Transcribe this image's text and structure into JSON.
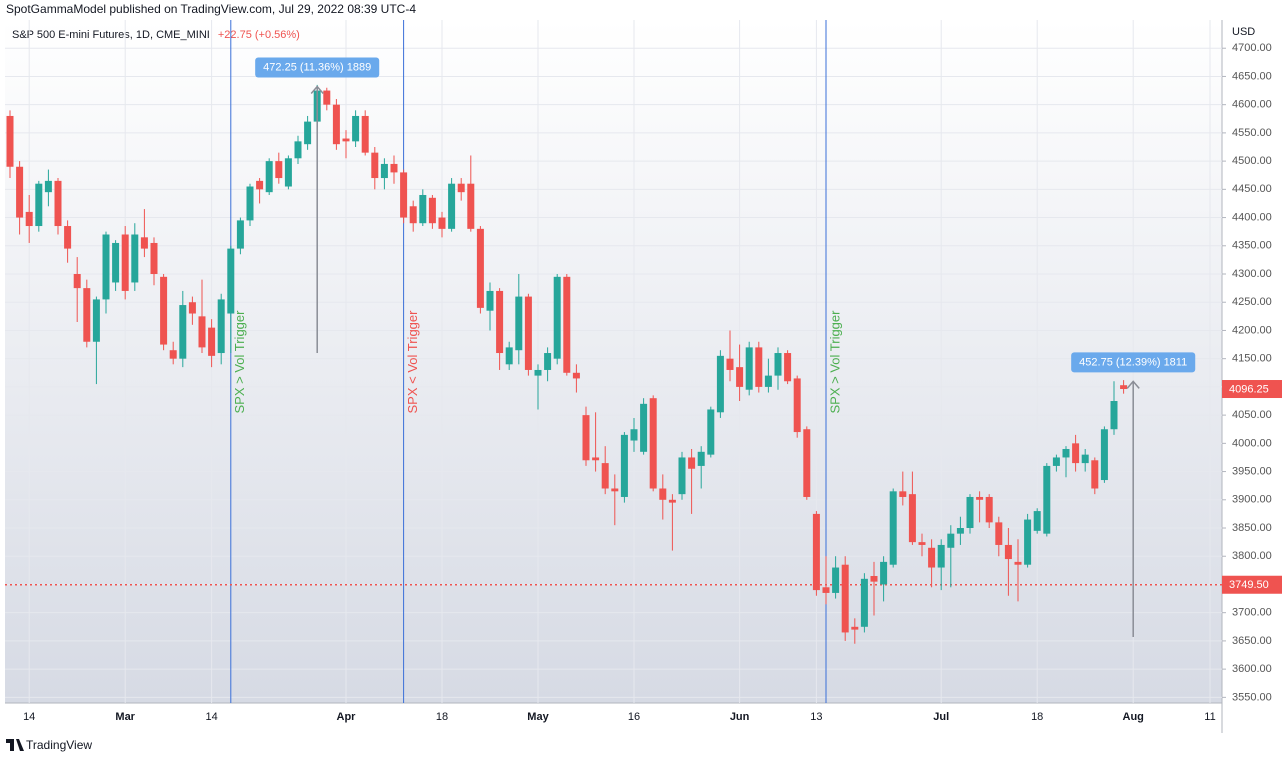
{
  "header": {
    "publisher": "SpotGammaModel published on TradingView.com, Jul 29, 2022 08:39 UTC-4"
  },
  "footer": {
    "brand": "TradingView"
  },
  "chart_data": {
    "type": "candlestick",
    "title": "S&P 500 E-mini Futures, 1D, CME_MINI",
    "change": "+22.75 (+0.56%)",
    "change_color": "#ef5350",
    "currency": "USD",
    "up_color": "#26a69a",
    "down_color": "#ef5350",
    "grid": true,
    "ylim": [
      3540,
      4750
    ],
    "yticks": [
      {
        "value": 3550,
        "label": "3550.00"
      },
      {
        "value": 3600,
        "label": "3600.00"
      },
      {
        "value": 3650,
        "label": "3650.00"
      },
      {
        "value": 3700,
        "label": "3700.00"
      },
      {
        "value": 3750,
        "label": "3750.00"
      },
      {
        "value": 3800,
        "label": "3800.00"
      },
      {
        "value": 3850,
        "label": "3850.00"
      },
      {
        "value": 3900,
        "label": "3900.00"
      },
      {
        "value": 3950,
        "label": "3950.00"
      },
      {
        "value": 4000,
        "label": "4000.00"
      },
      {
        "value": 4050,
        "label": "4050.00"
      },
      {
        "value": 4100,
        "label": "4100.00"
      },
      {
        "value": 4150,
        "label": "4150.00"
      },
      {
        "value": 4200,
        "label": "4200.00"
      },
      {
        "value": 4250,
        "label": "4250.00"
      },
      {
        "value": 4300,
        "label": "4300.00"
      },
      {
        "value": 4350,
        "label": "4350.00"
      },
      {
        "value": 4400,
        "label": "4400.00"
      },
      {
        "value": 4450,
        "label": "4450.00"
      },
      {
        "value": 4500,
        "label": "4500.00"
      },
      {
        "value": 4550,
        "label": "4550.00"
      },
      {
        "value": 4600,
        "label": "4600.00"
      },
      {
        "value": 4650,
        "label": "4650.00"
      },
      {
        "value": 4700,
        "label": "4700.00"
      }
    ],
    "categories": [
      null,
      null,
      "14",
      null,
      null,
      null,
      null,
      null,
      null,
      null,
      null,
      null,
      "Mar",
      null,
      null,
      null,
      null,
      null,
      null,
      null,
      null,
      "14",
      null,
      null,
      null,
      null,
      null,
      null,
      null,
      null,
      null,
      null,
      null,
      null,
      null,
      "Apr",
      null,
      null,
      null,
      null,
      null,
      null,
      null,
      null,
      null,
      "18",
      null,
      null,
      null,
      null,
      null,
      null,
      null,
      null,
      null,
      "May",
      null,
      null,
      null,
      null,
      null,
      null,
      null,
      null,
      null,
      "16",
      null,
      null,
      null,
      null,
      null,
      null,
      null,
      null,
      null,
      null,
      "Jun",
      null,
      null,
      null,
      null,
      null,
      null,
      null,
      "13",
      null,
      null,
      null,
      null,
      null,
      null,
      null,
      null,
      null,
      null,
      null,
      null,
      "Jul",
      null,
      null,
      null,
      null,
      null,
      null,
      null,
      null,
      null,
      "18",
      null,
      null,
      null,
      null,
      null,
      null,
      null,
      null,
      null,
      "Aug",
      null,
      null,
      null,
      null,
      null,
      null,
      null,
      "11"
    ],
    "ohlc": [
      [
        4580,
        4590,
        4470,
        4490
      ],
      [
        4490,
        4500,
        4370,
        4400
      ],
      [
        4410,
        4440,
        4355,
        4385
      ],
      [
        4385,
        4465,
        4375,
        4460
      ],
      [
        4445,
        4485,
        4420,
        4465
      ],
      [
        4465,
        4470,
        4370,
        4385
      ],
      [
        4385,
        4395,
        4320,
        4345
      ],
      [
        4300,
        4330,
        4215,
        4275
      ],
      [
        4275,
        4290,
        4170,
        4180
      ],
      [
        4180,
        4260,
        4105,
        4255
      ],
      [
        4255,
        4375,
        4230,
        4370
      ],
      [
        4285,
        4360,
        4270,
        4355
      ],
      [
        4370,
        4385,
        4255,
        4270
      ],
      [
        4285,
        4390,
        4270,
        4370
      ],
      [
        4365,
        4415,
        4330,
        4345
      ],
      [
        4355,
        4365,
        4280,
        4300
      ],
      [
        4295,
        4300,
        4165,
        4175
      ],
      [
        4165,
        4180,
        4140,
        4150
      ],
      [
        4150,
        4270,
        4135,
        4245
      ],
      [
        4250,
        4260,
        4210,
        4230
      ],
      [
        4225,
        4290,
        4160,
        4170
      ],
      [
        4205,
        4220,
        4135,
        4155
      ],
      [
        4160,
        4265,
        4140,
        4255
      ],
      [
        4230,
        4350,
        4160,
        4345
      ],
      [
        4345,
        4400,
        4335,
        4395
      ],
      [
        4395,
        4460,
        4385,
        4455
      ],
      [
        4465,
        4470,
        4425,
        4450
      ],
      [
        4445,
        4505,
        4440,
        4500
      ],
      [
        4500,
        4515,
        4460,
        4470
      ],
      [
        4455,
        4510,
        4450,
        4505
      ],
      [
        4505,
        4545,
        4495,
        4535
      ],
      [
        4530,
        4580,
        4520,
        4570
      ],
      [
        4570,
        4635,
        4560,
        4625
      ],
      [
        4625,
        4630,
        4590,
        4600
      ],
      [
        4600,
        4610,
        4520,
        4530
      ],
      [
        4540,
        4555,
        4505,
        4535
      ],
      [
        4535,
        4590,
        4525,
        4580
      ],
      [
        4580,
        4590,
        4510,
        4515
      ],
      [
        4515,
        4525,
        4450,
        4470
      ],
      [
        4470,
        4505,
        4450,
        4495
      ],
      [
        4495,
        4510,
        4460,
        4480
      ],
      [
        4480,
        4485,
        4390,
        4400
      ],
      [
        4420,
        4430,
        4375,
        4390
      ],
      [
        4390,
        4450,
        4385,
        4440
      ],
      [
        4435,
        4440,
        4380,
        4390
      ],
      [
        4400,
        4410,
        4365,
        4380
      ],
      [
        4380,
        4470,
        4375,
        4460
      ],
      [
        4460,
        4470,
        4430,
        4445
      ],
      [
        4460,
        4510,
        4375,
        4380
      ],
      [
        4380,
        4385,
        4230,
        4240
      ],
      [
        4235,
        4285,
        4200,
        4270
      ],
      [
        4270,
        4275,
        4130,
        4160
      ],
      [
        4140,
        4180,
        4130,
        4170
      ],
      [
        4165,
        4300,
        4140,
        4260
      ],
      [
        4260,
        4265,
        4120,
        4130
      ],
      [
        4120,
        4140,
        4060,
        4130
      ],
      [
        4130,
        4170,
        4110,
        4160
      ],
      [
        4150,
        4300,
        4140,
        4295
      ],
      [
        4295,
        4300,
        4120,
        4125
      ],
      [
        4125,
        4140,
        4090,
        4115
      ],
      [
        4050,
        4065,
        3960,
        3970
      ],
      [
        3975,
        4055,
        3950,
        3970
      ],
      [
        3965,
        3995,
        3910,
        3920
      ],
      [
        3920,
        3945,
        3855,
        3915
      ],
      [
        3905,
        4020,
        3895,
        4015
      ],
      [
        4005,
        4045,
        3985,
        4025
      ],
      [
        3985,
        4080,
        3980,
        4070
      ],
      [
        4080,
        4085,
        3915,
        3920
      ],
      [
        3920,
        3945,
        3865,
        3900
      ],
      [
        3900,
        3910,
        3810,
        3895
      ],
      [
        3910,
        3985,
        3900,
        3975
      ],
      [
        3975,
        3990,
        3875,
        3955
      ],
      [
        3960,
        3995,
        3920,
        3985
      ],
      [
        3980,
        4065,
        3975,
        4060
      ],
      [
        4055,
        4165,
        4045,
        4155
      ],
      [
        4150,
        4200,
        4110,
        4130
      ],
      [
        4135,
        4175,
        4075,
        4100
      ],
      [
        4095,
        4180,
        4085,
        4170
      ],
      [
        4170,
        4180,
        4090,
        4100
      ],
      [
        4100,
        4150,
        4090,
        4120
      ],
      [
        4120,
        4170,
        4095,
        4160
      ],
      [
        4160,
        4165,
        4105,
        4110
      ],
      [
        4115,
        4120,
        4010,
        4020
      ],
      [
        4025,
        4030,
        3900,
        3905
      ],
      [
        3875,
        3880,
        3730,
        3740
      ],
      [
        3745,
        3800,
        3715,
        3735
      ],
      [
        3735,
        3800,
        3725,
        3780
      ],
      [
        3785,
        3800,
        3650,
        3665
      ],
      [
        3675,
        3690,
        3645,
        3670
      ],
      [
        3675,
        3770,
        3665,
        3760
      ],
      [
        3765,
        3790,
        3695,
        3755
      ],
      [
        3750,
        3800,
        3720,
        3790
      ],
      [
        3785,
        3920,
        3780,
        3915
      ],
      [
        3915,
        3950,
        3890,
        3905
      ],
      [
        3910,
        3950,
        3820,
        3825
      ],
      [
        3825,
        3840,
        3800,
        3820
      ],
      [
        3815,
        3830,
        3745,
        3780
      ],
      [
        3780,
        3830,
        3740,
        3820
      ],
      [
        3815,
        3855,
        3745,
        3840
      ],
      [
        3840,
        3870,
        3820,
        3850
      ],
      [
        3850,
        3910,
        3840,
        3905
      ],
      [
        3905,
        3915,
        3860,
        3900
      ],
      [
        3905,
        3910,
        3850,
        3860
      ],
      [
        3860,
        3870,
        3800,
        3820
      ],
      [
        3820,
        3850,
        3730,
        3795
      ],
      [
        3790,
        3830,
        3720,
        3785
      ],
      [
        3785,
        3875,
        3780,
        3865
      ],
      [
        3845,
        3885,
        3840,
        3880
      ],
      [
        3840,
        3965,
        3835,
        3960
      ],
      [
        3960,
        3980,
        3950,
        3975
      ],
      [
        3975,
        3995,
        3940,
        3990
      ],
      [
        4000,
        4015,
        3950,
        3965
      ],
      [
        3965,
        3990,
        3950,
        3980
      ],
      [
        3970,
        3975,
        3910,
        3920
      ],
      [
        3935,
        4030,
        3930,
        4025
      ],
      [
        4025,
        4110,
        4015,
        4075
      ],
      [
        4103,
        4112,
        4088,
        4096.25
      ],
      null,
      null,
      null,
      null,
      null,
      null,
      null,
      null,
      null
    ],
    "last_price": {
      "value": 4096.25,
      "label": "4096.25",
      "color": "#ef5350"
    },
    "hline": {
      "value": 3749.5,
      "label": "3749.50",
      "color": "#ef5350"
    },
    "line_color": "#3a6fd8",
    "triggers": [
      {
        "text": "SPX > Vol Trigger",
        "color": "#4caf50",
        "at_index": 23
      },
      {
        "text": "SPX < Vol Trigger",
        "color": "#ef5350",
        "at_index": 41
      },
      {
        "text": "SPX > Vol Trigger",
        "color": "#4caf50",
        "at_index": 85
      }
    ],
    "measures": [
      {
        "label": "472.25 (11.36%) 1889",
        "at_index": 32,
        "from": 4160,
        "to": 4632.25
      },
      {
        "label": "452.75 (12.39%) 1811",
        "at_index": 117,
        "from": 3657,
        "to": 4109.75
      }
    ]
  }
}
